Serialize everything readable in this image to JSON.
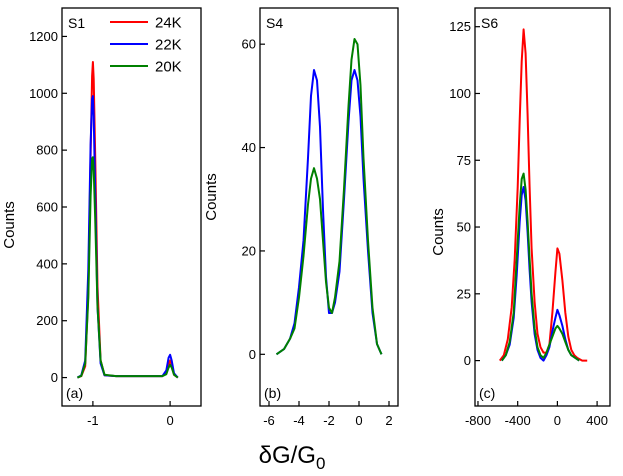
{
  "xlabel_main": "δG/G",
  "xlabel_sub": "0",
  "chart_data": [
    {
      "type": "line",
      "panel_id": "S1",
      "panel_label": "(a)",
      "ylabel": "Counts",
      "xlim": [
        -1.4,
        0.4
      ],
      "ylim": [
        -100,
        1300
      ],
      "xticks": [
        -1,
        0
      ],
      "xtick_labels": [
        "-1",
        "0"
      ],
      "yticks": [
        0,
        200,
        400,
        600,
        800,
        1000,
        1200
      ],
      "ytick_labels": [
        "0",
        "200",
        "400",
        "600",
        "800",
        "1000",
        "1200"
      ],
      "legend": "top-right",
      "series": [
        {
          "name": "24K",
          "color": "#ff0000",
          "x": [
            -1.2,
            -1.15,
            -1.1,
            -1.06,
            -1.03,
            -1.01,
            -1.0,
            -0.99,
            -0.97,
            -0.94,
            -0.9,
            -0.85,
            -0.7,
            -0.5,
            -0.3,
            -0.1,
            -0.05,
            -0.02,
            0.0,
            0.02,
            0.05,
            0.1
          ],
          "y": [
            0,
            5,
            40,
            300,
            780,
            1060,
            1110,
            1050,
            780,
            320,
            60,
            8,
            5,
            5,
            5,
            5,
            15,
            45,
            60,
            45,
            10,
            0
          ]
        },
        {
          "name": "22K",
          "color": "#0000ff",
          "x": [
            -1.2,
            -1.15,
            -1.1,
            -1.06,
            -1.03,
            -1.01,
            -1.0,
            -0.99,
            -0.97,
            -0.94,
            -0.9,
            -0.85,
            -0.7,
            -0.5,
            -0.3,
            -0.1,
            -0.05,
            -0.02,
            0.0,
            0.02,
            0.05,
            0.1
          ],
          "y": [
            0,
            8,
            60,
            380,
            820,
            980,
            990,
            920,
            650,
            250,
            50,
            8,
            5,
            5,
            5,
            5,
            25,
            70,
            80,
            60,
            15,
            0
          ]
        },
        {
          "name": "20K",
          "color": "#008000",
          "x": [
            -1.2,
            -1.15,
            -1.1,
            -1.06,
            -1.03,
            -1.01,
            -1.0,
            -0.99,
            -0.97,
            -0.94,
            -0.9,
            -0.85,
            -0.7,
            -0.5,
            -0.3,
            -0.1,
            -0.05,
            -0.02,
            0.0,
            0.02,
            0.05,
            0.1
          ],
          "y": [
            0,
            6,
            50,
            280,
            640,
            770,
            775,
            730,
            560,
            250,
            60,
            10,
            5,
            5,
            5,
            5,
            12,
            35,
            45,
            35,
            10,
            0
          ]
        }
      ]
    },
    {
      "type": "line",
      "panel_id": "S4",
      "panel_label": "(b)",
      "ylabel": "Counts",
      "xlim": [
        -6.6,
        2.6
      ],
      "ylim": [
        -10,
        67
      ],
      "xticks": [
        -6,
        -4,
        -2,
        0,
        2
      ],
      "xtick_labels": [
        "-6",
        "-4",
        "-2",
        "0",
        "2"
      ],
      "yticks": [
        0,
        20,
        40,
        60
      ],
      "ytick_labels": [
        "0",
        "20",
        "40",
        "60"
      ],
      "series": [
        {
          "name": "",
          "color": "#0000ff",
          "x": [
            -5.5,
            -5.0,
            -4.6,
            -4.3,
            -4.0,
            -3.7,
            -3.4,
            -3.2,
            -3.0,
            -2.8,
            -2.6,
            -2.4,
            -2.2,
            -2.0,
            -1.8,
            -1.6,
            -1.3,
            -1.0,
            -0.7,
            -0.5,
            -0.3,
            -0.1,
            0.1,
            0.3,
            0.6,
            0.9,
            1.2,
            1.5
          ],
          "y": [
            0,
            1,
            3,
            6,
            13,
            22,
            38,
            50,
            55,
            53,
            44,
            28,
            15,
            8,
            8,
            10,
            16,
            30,
            45,
            53,
            55,
            53,
            46,
            34,
            20,
            8,
            2,
            0
          ]
        },
        {
          "name": "",
          "color": "#008000",
          "x": [
            -5.5,
            -5.0,
            -4.6,
            -4.3,
            -4.0,
            -3.7,
            -3.4,
            -3.2,
            -3.0,
            -2.8,
            -2.6,
            -2.4,
            -2.2,
            -2.0,
            -1.8,
            -1.6,
            -1.3,
            -1.0,
            -0.7,
            -0.5,
            -0.3,
            -0.1,
            0.1,
            0.3,
            0.6,
            0.9,
            1.2,
            1.5
          ],
          "y": [
            0,
            1,
            3,
            5,
            11,
            19,
            29,
            34,
            36,
            34,
            30,
            22,
            14,
            9,
            8,
            11,
            18,
            32,
            48,
            57,
            61,
            60,
            52,
            38,
            22,
            9,
            2,
            0
          ]
        }
      ]
    },
    {
      "type": "line",
      "panel_id": "S6",
      "panel_label": "(c)",
      "ylabel": "Counts",
      "xlim": [
        -830,
        530
      ],
      "ylim": [
        -17,
        132
      ],
      "xticks": [
        -800,
        -400,
        0,
        400
      ],
      "xtick_labels": [
        "-800",
        "-400",
        "0",
        "400"
      ],
      "yticks": [
        0,
        25,
        50,
        75,
        100,
        125
      ],
      "ytick_labels": [
        "0",
        "25",
        "50",
        "75",
        "100",
        "125"
      ],
      "series": [
        {
          "name": "",
          "color": "#ff0000",
          "x": [
            -580,
            -540,
            -500,
            -460,
            -430,
            -400,
            -380,
            -360,
            -340,
            -320,
            -300,
            -280,
            -260,
            -230,
            -200,
            -170,
            -140,
            -110,
            -80,
            -50,
            -20,
            0,
            20,
            50,
            80,
            110,
            140,
            170,
            200,
            250,
            300
          ],
          "y": [
            0,
            2,
            8,
            20,
            38,
            65,
            90,
            112,
            124,
            115,
            92,
            65,
            42,
            22,
            10,
            5,
            3,
            3,
            6,
            18,
            33,
            42,
            40,
            30,
            18,
            9,
            4,
            2,
            1,
            0,
            0
          ]
        },
        {
          "name": "",
          "color": "#0000ff",
          "x": [
            -560,
            -520,
            -480,
            -440,
            -410,
            -380,
            -360,
            -340,
            -320,
            -300,
            -280,
            -260,
            -230,
            -200,
            -170,
            -140,
            -110,
            -80,
            -50,
            -20,
            0,
            20,
            50,
            80,
            110,
            140,
            180,
            220
          ],
          "y": [
            0,
            2,
            6,
            16,
            32,
            52,
            62,
            65,
            60,
            48,
            34,
            22,
            10,
            4,
            1,
            0,
            2,
            5,
            11,
            16,
            19,
            17,
            13,
            8,
            4,
            2,
            1,
            0
          ]
        },
        {
          "name": "",
          "color": "#008000",
          "x": [
            -560,
            -520,
            -480,
            -440,
            -410,
            -380,
            -360,
            -340,
            -320,
            -300,
            -280,
            -260,
            -230,
            -200,
            -170,
            -140,
            -110,
            -80,
            -50,
            -20,
            0,
            20,
            50,
            80,
            110,
            140,
            180,
            220
          ],
          "y": [
            0,
            2,
            7,
            18,
            38,
            58,
            68,
            70,
            64,
            52,
            38,
            25,
            12,
            5,
            2,
            1,
            3,
            6,
            9,
            12,
            13,
            12,
            10,
            7,
            4,
            2,
            1,
            0
          ]
        }
      ]
    }
  ]
}
